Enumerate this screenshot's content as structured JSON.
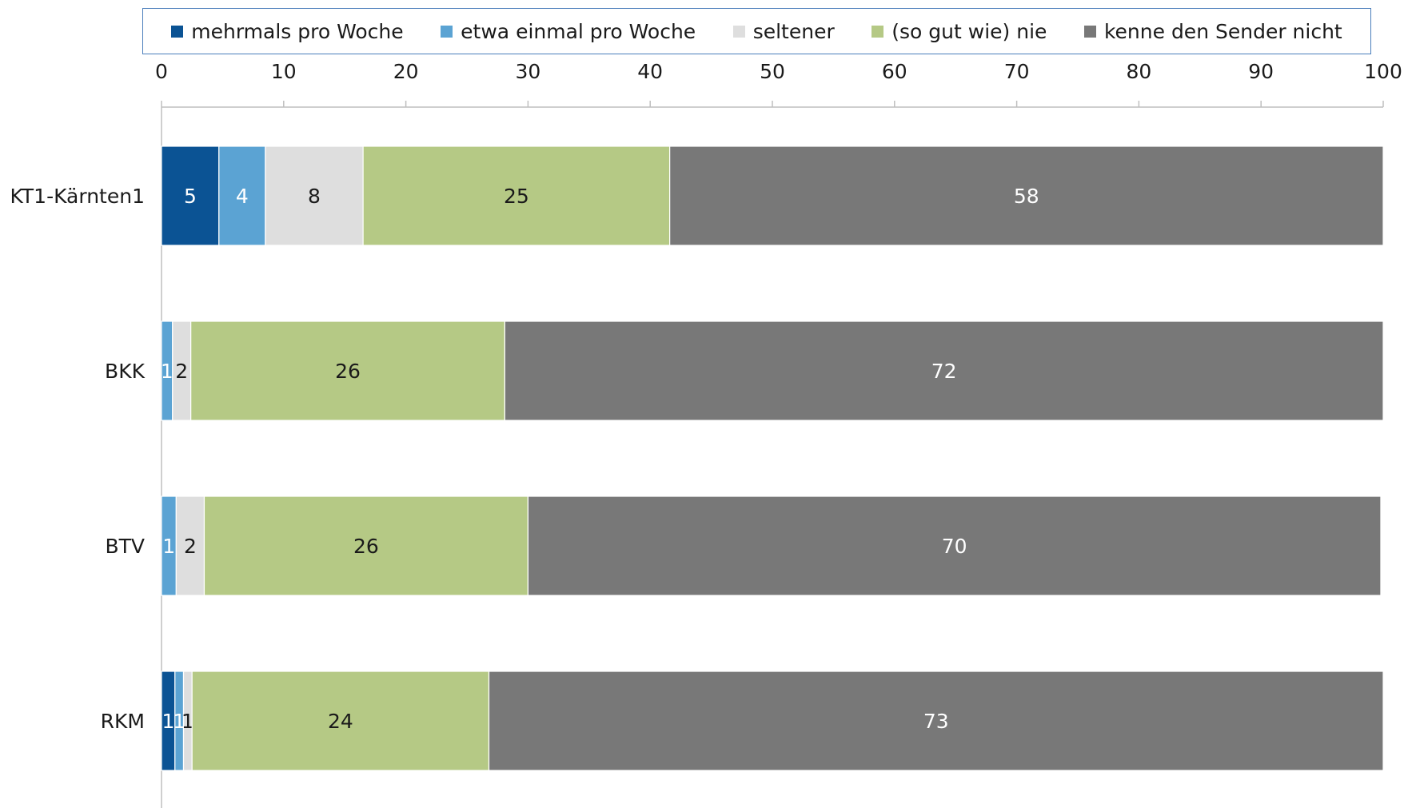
{
  "chart_data": {
    "type": "bar",
    "orientation": "horizontal",
    "stacked": true,
    "title": "",
    "xlabel": "",
    "ylabel": "",
    "xlim": [
      0,
      100
    ],
    "ticks": [
      0,
      10,
      20,
      30,
      40,
      50,
      60,
      70,
      80,
      90,
      100
    ],
    "grid": false,
    "legend_position": "top",
    "categories": [
      "KT1-Kärnten1",
      "BKK",
      "BTV",
      "RKM"
    ],
    "series": [
      {
        "name": "mehrmals pro Woche",
        "color": "#0b5394",
        "label_color": "#ffffff",
        "values": [
          4.7,
          0,
          0,
          1.1
        ],
        "labels": [
          "5",
          "",
          "",
          "1"
        ]
      },
      {
        "name": "etwa einmal pro Woche",
        "color": "#5ba3d3",
        "label_color": "#ffffff",
        "values": [
          3.8,
          0.9,
          1.2,
          0.7
        ],
        "labels": [
          "4",
          "1",
          "1",
          "1"
        ]
      },
      {
        "name": "seltener",
        "color": "#dedede",
        "label_color": "#1a1a1a",
        "values": [
          8.0,
          1.5,
          2.3,
          0.7
        ],
        "labels": [
          "8",
          "2",
          "2",
          "1"
        ]
      },
      {
        "name": "(so gut wie) nie",
        "color": "#b5c985",
        "label_color": "#1a1a1a",
        "values": [
          25.1,
          25.7,
          26.5,
          24.3
        ],
        "labels": [
          "25",
          "26",
          "26",
          "24"
        ]
      },
      {
        "name": "kenne den Sender nicht",
        "color": "#787878",
        "label_color": "#ffffff",
        "values": [
          58.4,
          71.9,
          69.8,
          73.2
        ],
        "labels": [
          "58",
          "72",
          "70",
          "73"
        ]
      }
    ]
  }
}
